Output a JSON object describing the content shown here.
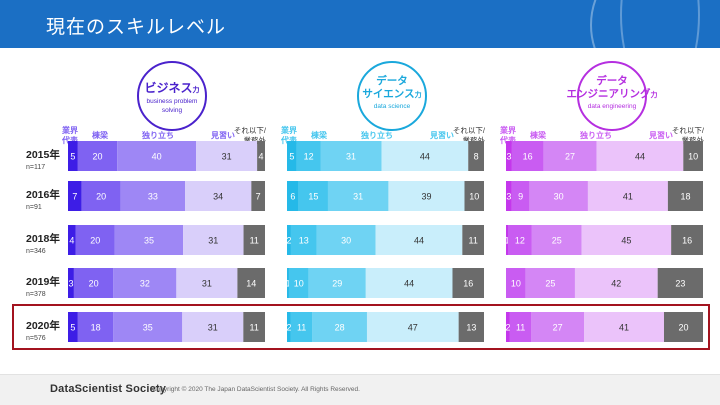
{
  "header": {
    "title": "現在のスキルレベル"
  },
  "footer": {
    "logo": "DataScientist Society",
    "copyright": "Copyright © 2020 The Japan DataScientist Society. All Rights Reserved."
  },
  "legend_labels": {
    "rep": [
      "業界",
      "代表"
    ],
    "pro": "棟梁",
    "ind": "独り立ち",
    "app": "見習い",
    "oth": [
      "それ以下/",
      "業務外"
    ]
  },
  "colors": {
    "business": [
      "#3d1de6",
      "#7f62f2",
      "#9e87f5",
      "#d9cffa",
      "#6b6b6b"
    ],
    "science": [
      "#25b9e8",
      "#45c6ee",
      "#6fd3f3",
      "#c9eefb",
      "#6b6b6b"
    ],
    "engineering": [
      "#c437ec",
      "#c95cf2",
      "#d486f5",
      "#ebc3fa",
      "#6b6b6b"
    ],
    "highlight": "#a3131f"
  },
  "chart_data": {
    "type": "bar",
    "stacked": true,
    "orientation": "horizontal",
    "units": "%",
    "categories": [
      "業界代表",
      "棟梁",
      "独り立ち",
      "見習い",
      "それ以下/業務外"
    ],
    "rows": [
      {
        "year": "2015年",
        "n": "n=117"
      },
      {
        "year": "2016年",
        "n": "n=91"
      },
      {
        "year": "2018年",
        "n": "n=346"
      },
      {
        "year": "2019年",
        "n": "n=378"
      },
      {
        "year": "2020年",
        "n": "n=576",
        "highlighted": true
      }
    ],
    "groups": [
      {
        "title_main": "ビジネス",
        "title_suffix": "力",
        "subtitle": [
          "business problem",
          "solving"
        ],
        "values": [
          [
            5,
            20,
            40,
            31,
            4
          ],
          [
            7,
            20,
            33,
            34,
            7
          ],
          [
            4,
            20,
            35,
            31,
            11
          ],
          [
            3,
            20,
            32,
            31,
            14
          ],
          [
            5,
            18,
            35,
            31,
            11
          ]
        ]
      },
      {
        "title_main": [
          "データ",
          "サイエンス"
        ],
        "title_suffix": "力",
        "subtitle": [
          "data science"
        ],
        "values": [
          [
            5,
            12,
            31,
            44,
            8
          ],
          [
            6,
            15,
            31,
            39,
            10
          ],
          [
            2,
            13,
            30,
            44,
            11
          ],
          [
            1,
            10,
            29,
            44,
            16
          ],
          [
            2,
            11,
            28,
            47,
            13
          ]
        ]
      },
      {
        "title_main": [
          "データ",
          "エンジニアリング"
        ],
        "title_suffix": "力",
        "subtitle": [
          "data engineering"
        ],
        "values": [
          [
            3,
            16,
            27,
            44,
            10
          ],
          [
            3,
            9,
            30,
            41,
            18
          ],
          [
            1,
            12,
            25,
            45,
            16
          ],
          [
            0,
            10,
            25,
            42,
            23
          ],
          [
            2,
            11,
            27,
            41,
            20
          ]
        ]
      }
    ]
  }
}
